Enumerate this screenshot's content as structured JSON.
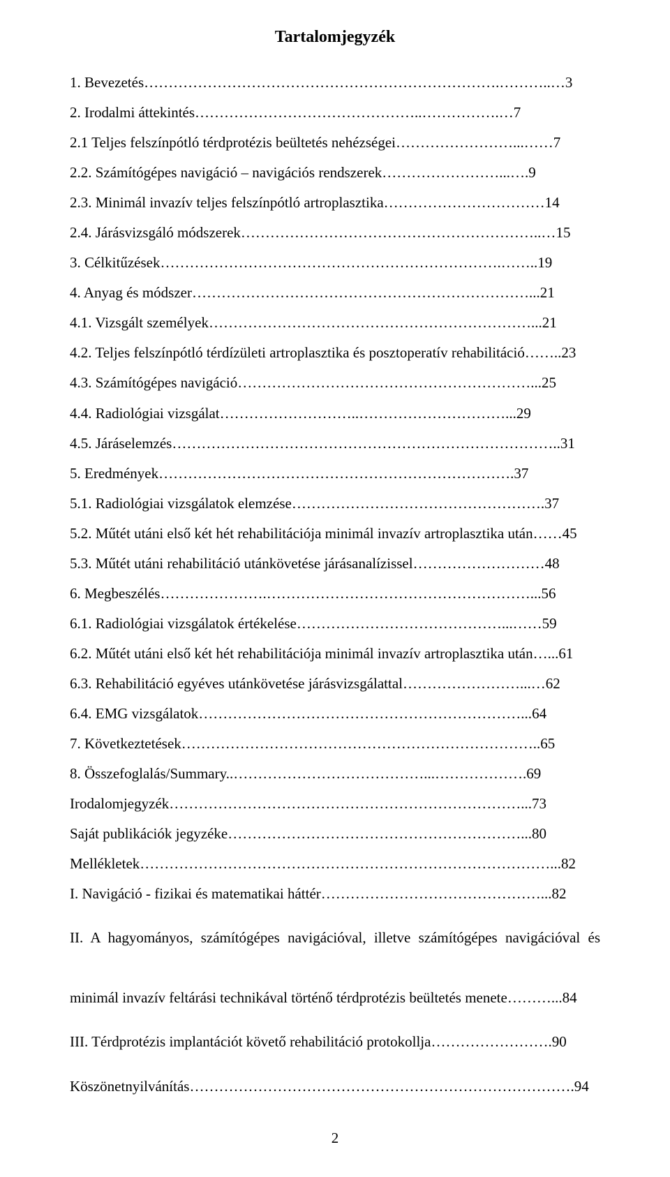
{
  "title": "Tartalomjegyzék",
  "entries": [
    {
      "text": "1.  Bevezetés……………………………………………………………….………..…",
      "page": "3"
    },
    {
      "text": "2.  Irodalmi áttekintés………………………………………..…………….…",
      "page": "7"
    },
    {
      "text": "2.1 Teljes felszínpótló térdprotézis beültetés nehézségei……………………...……",
      "page": "7"
    },
    {
      "text": "2.2. Számítógépes navigáció – navigációs rendszerek……………………...….",
      "page": "9"
    },
    {
      "text": "2.3. Minimál invazív teljes felszínpótló artroplasztika……………………………",
      "page": "14"
    },
    {
      "text": "2.4. Járásvizsgáló módszerek……………………………………………………..…",
      "page": "15"
    },
    {
      "text": "3.  Célkitűzések…………………………………………………………….……..",
      "page": "19"
    },
    {
      "text": "4.  Anyag és módszer……………………………………………………………...",
      "page": "21"
    },
    {
      "text": "4.1. Vizsgált személyek…………………………………………………………...",
      "page": "21"
    },
    {
      "text": "4.2. Teljes felszínpótló térdízületi artroplasztika és posztoperatív rehabilitáció……..",
      "page": "23"
    },
    {
      "text": "4.3. Számítógépes navigáció……………………………………………………...",
      "page": "25"
    },
    {
      "text": "4.4. Radiológiai vizsgálat………………………..…………………………...",
      "page": "29"
    },
    {
      "text": "4.5. Járáselemzés……………………………………………………………………..",
      "page": "31"
    },
    {
      "text": "5.  Eredmények……………………………………………………………….",
      "page": "37"
    },
    {
      "text": "5.1. Radiológiai vizsgálatok elemzése…………………………………………….",
      "page": "37"
    },
    {
      "text": "5.2. Műtét utáni első két hét rehabilitációja minimál invazív artroplasztika után……",
      "page": "45"
    },
    {
      "text": "5.3. Műtét utáni rehabilitáció utánkövetése járásanalízissel………………………",
      "page": "48"
    },
    {
      "text": "6.  Megbeszélés………………….………………………………………………...",
      "page": "56"
    },
    {
      "text": "6.1. Radiológiai vizsgálatok értékelése……………………………………...……",
      "page": "59"
    },
    {
      "text": "6.2. Műtét utáni első két hét rehabilitációja minimál invazív artroplasztika után…...",
      "page": "61"
    },
    {
      "text": "6.3. Rehabilitáció egyéves utánkövetése járásvizsgálattal……………………...…",
      "page": "62"
    },
    {
      "text": "6.4. EMG vizsgálatok…………………………………………………………...",
      "page": "64"
    },
    {
      "text": "7.  Következtetések………………………………………………………………..",
      "page": "65"
    },
    {
      "text": "8.  Összefoglalás/Summary..…………………………………...……………….",
      "page": "69"
    },
    {
      "text": "Irodalomjegyzék………………………………………………………………...",
      "page": "73"
    },
    {
      "text": "Saját publikációk jegyzéke……………………………………………………...",
      "page": "80"
    },
    {
      "text": "Mellékletek…………………………………………………………………………...",
      "page": "82"
    },
    {
      "text": "I. Navigáció - fizikai és matematikai háttér………………………………………...",
      "page": "82"
    },
    {
      "text": "II. A hagyományos,  számítógépes navigációval, illetve számítógépes navigációval és",
      "page": ""
    },
    {
      "text": "minimál invazív feltárási technikával történő térdprotézis beültetés menete………...",
      "page": "84"
    },
    {
      "text": "III. Térdprotézis implantációt követő rehabilitáció protokollja…………………….",
      "page": "90"
    },
    {
      "text": "Köszönetnyilvánítás…………………………………………………………………….",
      "page": "94"
    }
  ],
  "lastLineSpacing": [
    28,
    30,
    31
  ],
  "pageNumber": "2"
}
